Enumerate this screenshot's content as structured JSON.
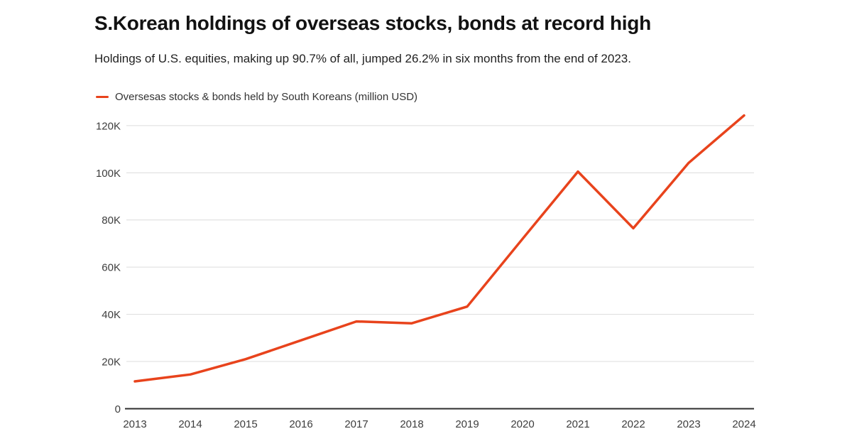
{
  "page": {
    "background_color": "#ffffff"
  },
  "header": {
    "title": "S.Korean holdings of overseas stocks, bonds at record high",
    "subtitle": "Holdings of U.S. equities, making up 90.7% of all, jumped 26.2% in six months from the end of 2023."
  },
  "legend": {
    "label": "Oversesas stocks & bonds held by South Koreans (million USD)",
    "swatch_color": "#e8431c"
  },
  "chart_data": {
    "type": "line",
    "title": "S.Korean holdings of overseas stocks, bonds at record high",
    "subtitle": "Holdings of U.S. equities, making up 90.7% of all, jumped 26.2% in six months from the end of 2023.",
    "xlabel": "",
    "ylabel": "",
    "unit": "million USD",
    "x": [
      2013,
      2014,
      2015,
      2016,
      2017,
      2018,
      2019,
      2020,
      2021,
      2022,
      2023,
      2024
    ],
    "series": [
      {
        "name": "Oversesas stocks & bonds held by South Koreans (million USD)",
        "color": "#e8431c",
        "values": [
          11600,
          14500,
          21000,
          29000,
          37000,
          36200,
          43300,
          72000,
          100500,
          76500,
          104200,
          124300
        ]
      }
    ],
    "ylim": [
      0,
      130000
    ],
    "yticks": [
      0,
      20000,
      40000,
      60000,
      80000,
      100000,
      120000
    ],
    "ytick_labels": [
      "0",
      "20K",
      "40K",
      "60K",
      "80K",
      "100K",
      "120K"
    ],
    "grid": true,
    "legend_position": "top-left"
  }
}
